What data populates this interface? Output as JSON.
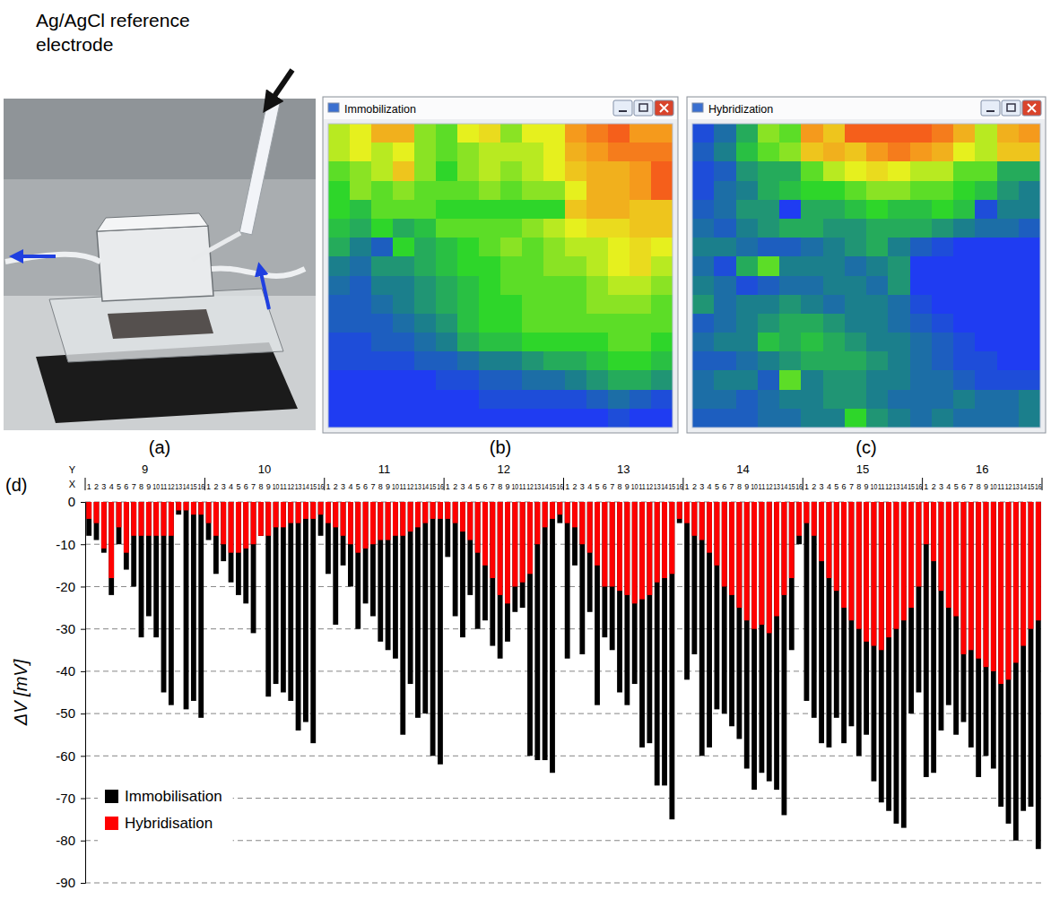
{
  "photo": {
    "panel": "(a)",
    "annotation": [
      "Ag/AgCl reference",
      "electrode"
    ]
  },
  "chart_data": [
    {
      "type": "heatmap",
      "title": "Immobilization",
      "panel": "(b)",
      "zlim": [
        -85,
        -5
      ],
      "cells": [
        [
          -49,
          -53,
          -65,
          -65,
          -45,
          -41,
          -53,
          -57,
          -45,
          -53,
          -53,
          -69,
          -73,
          -77,
          -69,
          -69
        ],
        [
          -49,
          -53,
          -49,
          -53,
          -45,
          -41,
          -45,
          -49,
          -49,
          -49,
          -53,
          -65,
          -69,
          -73,
          -73,
          -73
        ],
        [
          -41,
          -45,
          -49,
          -61,
          -45,
          -37,
          -45,
          -49,
          -45,
          -49,
          -53,
          -61,
          -65,
          -65,
          -69,
          -77
        ],
        [
          -37,
          -45,
          -41,
          -45,
          -41,
          -41,
          -41,
          -45,
          -41,
          -45,
          -45,
          -53,
          -65,
          -65,
          -69,
          -77
        ],
        [
          -37,
          -33,
          -41,
          -41,
          -41,
          -37,
          -37,
          -37,
          -37,
          -37,
          -37,
          -61,
          -65,
          -65,
          -61,
          -61
        ],
        [
          -33,
          -29,
          -37,
          -29,
          -33,
          -41,
          -41,
          -41,
          -41,
          -45,
          -49,
          -53,
          -57,
          -57,
          -61,
          -61
        ],
        [
          -29,
          -21,
          -13,
          -37,
          -29,
          -33,
          -37,
          -41,
          -45,
          -41,
          -45,
          -49,
          -49,
          -53,
          -57,
          -53
        ],
        [
          -21,
          -17,
          -25,
          -25,
          -29,
          -33,
          -37,
          -37,
          -41,
          -41,
          -45,
          -45,
          -49,
          -53,
          -57,
          -49
        ],
        [
          -17,
          -13,
          -21,
          -21,
          -25,
          -29,
          -33,
          -37,
          -41,
          -41,
          -41,
          -41,
          -45,
          -49,
          -49,
          -45
        ],
        [
          -13,
          -13,
          -17,
          -21,
          -25,
          -29,
          -33,
          -37,
          -37,
          -41,
          -41,
          -41,
          -45,
          -45,
          -45,
          -41
        ],
        [
          -13,
          -13,
          -13,
          -17,
          -21,
          -25,
          -33,
          -37,
          -37,
          -41,
          -41,
          -41,
          -41,
          -41,
          -41,
          -41
        ],
        [
          -9,
          -9,
          -13,
          -13,
          -17,
          -21,
          -29,
          -33,
          -33,
          -37,
          -37,
          -37,
          -37,
          -41,
          -41,
          -37
        ],
        [
          -9,
          -9,
          -9,
          -9,
          -13,
          -13,
          -17,
          -21,
          -21,
          -25,
          -29,
          -29,
          -33,
          -37,
          -37,
          -33
        ],
        [
          -5,
          -5,
          -5,
          -5,
          -5,
          -9,
          -9,
          -13,
          -13,
          -17,
          -17,
          -21,
          -25,
          -29,
          -29,
          -25
        ],
        [
          -5,
          -5,
          -5,
          -5,
          -5,
          -5,
          -5,
          -9,
          -9,
          -9,
          -9,
          -9,
          -13,
          -17,
          -13,
          -9
        ],
        [
          -5,
          -5,
          -5,
          -5,
          -5,
          -5,
          -5,
          -5,
          -5,
          -5,
          -5,
          -5,
          -5,
          -9,
          -5,
          -5
        ]
      ]
    },
    {
      "type": "heatmap",
      "title": "Hybridization",
      "panel": "(c)",
      "zlim": [
        -43,
        -3
      ],
      "cells": [
        [
          -5,
          -9,
          -15,
          -23,
          -21,
          -35,
          -31,
          -39,
          -39,
          -39,
          -39,
          -37,
          -33,
          -25,
          -33,
          -35
        ],
        [
          -7,
          -11,
          -17,
          -21,
          -23,
          -31,
          -33,
          -31,
          -35,
          -37,
          -35,
          -33,
          -27,
          -25,
          -31,
          -31
        ],
        [
          -5,
          -7,
          -13,
          -15,
          -15,
          -21,
          -25,
          -27,
          -29,
          -27,
          -25,
          -25,
          -21,
          -21,
          -15,
          -15
        ],
        [
          -5,
          -9,
          -11,
          -15,
          -17,
          -19,
          -19,
          -21,
          -23,
          -23,
          -21,
          -21,
          -19,
          -17,
          -13,
          -11
        ],
        [
          -7,
          -9,
          -13,
          -13,
          -3,
          -15,
          -15,
          -17,
          -19,
          -17,
          -17,
          -19,
          -17,
          -5,
          -11,
          -11
        ],
        [
          -9,
          -7,
          -11,
          -13,
          -15,
          -15,
          -13,
          -13,
          -15,
          -15,
          -15,
          -13,
          -11,
          -9,
          -9,
          -7
        ],
        [
          -11,
          -11,
          -9,
          -7,
          -7,
          -9,
          -11,
          -13,
          -15,
          -11,
          -7,
          -5,
          -3,
          -3,
          -3,
          -3
        ],
        [
          -9,
          -5,
          -15,
          -21,
          -11,
          -11,
          -11,
          -9,
          -11,
          -13,
          -3,
          -3,
          -3,
          -3,
          -3,
          -3
        ],
        [
          -11,
          -9,
          -5,
          -7,
          -9,
          -9,
          -11,
          -11,
          -9,
          -13,
          -3,
          -3,
          -3,
          -3,
          -3,
          -3
        ],
        [
          -13,
          -9,
          -11,
          -11,
          -13,
          -11,
          -9,
          -11,
          -11,
          -9,
          -5,
          -3,
          -3,
          -3,
          -3,
          -3
        ],
        [
          -7,
          -9,
          -11,
          -13,
          -15,
          -15,
          -13,
          -11,
          -11,
          -9,
          -7,
          -5,
          -3,
          -3,
          -3,
          -3
        ],
        [
          -9,
          -11,
          -11,
          -17,
          -15,
          -17,
          -15,
          -13,
          -11,
          -11,
          -9,
          -7,
          -5,
          -3,
          -3,
          -3
        ],
        [
          -7,
          -7,
          -9,
          -11,
          -13,
          -15,
          -15,
          -15,
          -13,
          -11,
          -9,
          -7,
          -5,
          -5,
          -3,
          -3
        ],
        [
          -9,
          -11,
          -11,
          -7,
          -21,
          -11,
          -13,
          -13,
          -11,
          -11,
          -9,
          -9,
          -7,
          -5,
          -5,
          -5
        ],
        [
          -9,
          -9,
          -7,
          -9,
          -11,
          -11,
          -13,
          -13,
          -11,
          -9,
          -9,
          -9,
          -11,
          -9,
          -9,
          -11
        ],
        [
          -7,
          -7,
          -7,
          -9,
          -9,
          -11,
          -11,
          -19,
          -13,
          -11,
          -9,
          -11,
          -9,
          -9,
          -9,
          -11
        ]
      ]
    },
    {
      "type": "bar",
      "panel": "(d)",
      "y_label": "ΔV [mV]",
      "group_label": "Y",
      "category_label": "X",
      "groups": [
        9,
        10,
        11,
        12,
        13,
        14,
        15,
        16
      ],
      "categories": [
        1,
        2,
        3,
        4,
        5,
        6,
        7,
        8,
        9,
        10,
        11,
        12,
        13,
        14,
        15,
        16,
        1,
        2,
        3,
        4,
        5,
        6,
        7,
        8,
        9,
        10,
        11,
        12,
        13,
        14,
        15,
        16,
        1,
        2,
        3,
        4,
        5,
        6,
        7,
        8,
        9,
        10,
        11,
        12,
        13,
        14,
        15,
        16,
        1,
        2,
        3,
        4,
        5,
        6,
        7,
        8,
        9,
        10,
        11,
        12,
        13,
        14,
        15,
        16,
        1,
        2,
        3,
        4,
        5,
        6,
        7,
        8,
        9,
        10,
        11,
        12,
        13,
        14,
        15,
        16,
        1,
        2,
        3,
        4,
        5,
        6,
        7,
        8,
        9,
        10,
        11,
        12,
        13,
        14,
        15,
        16,
        1,
        2,
        3,
        4,
        5,
        6,
        7,
        8,
        9,
        10,
        11,
        12,
        13,
        14,
        15,
        16,
        1,
        2,
        3,
        4,
        5,
        6,
        7,
        8,
        9,
        10,
        11,
        12,
        13,
        14,
        15,
        16
      ],
      "series": [
        {
          "name": "Immobilisation",
          "color": "#000000",
          "values": [
            -8,
            -9,
            -12,
            -22,
            -10,
            -16,
            -20,
            -32,
            -27,
            -32,
            -45,
            -48,
            -3,
            -49,
            -47,
            -51,
            -9,
            -17,
            -14,
            -19,
            -22,
            -24,
            -31,
            -8,
            -46,
            -43,
            -45,
            -47,
            -54,
            -52,
            -57,
            -8,
            -17,
            -29,
            -15,
            -20,
            -30,
            -24,
            -27,
            -33,
            -35,
            -37,
            -55,
            -43,
            -51,
            -50,
            -60,
            -62,
            -13,
            -27,
            -32,
            -22,
            -30,
            -28,
            -34,
            -37,
            -33,
            -26,
            -25,
            -60,
            -61,
            -61,
            -64,
            -5,
            -37,
            -15,
            -36,
            -26,
            -48,
            -32,
            -35,
            -45,
            -48,
            -43,
            -58,
            -57,
            -67,
            -67,
            -75,
            -5,
            -42,
            -36,
            -60,
            -58,
            -49,
            -50,
            -53,
            -56,
            -63,
            -68,
            -64,
            -66,
            -68,
            -74,
            -35,
            -10,
            -47,
            -51,
            -57,
            -58,
            -51,
            -57,
            -53,
            -60,
            -55,
            -66,
            -71,
            -73,
            -76,
            -77,
            -50,
            -45,
            -65,
            -64,
            -54,
            -48,
            -55,
            -52,
            -58,
            -65,
            -60,
            -63,
            -72,
            -76,
            -80,
            -73,
            -72,
            -82
          ]
        },
        {
          "name": "Hybridisation",
          "color": "#ff0000",
          "values": [
            -4,
            -5,
            -11,
            -18,
            -6,
            -12,
            -8,
            -8,
            -8,
            -8,
            -8,
            -8,
            -2,
            -2,
            -3,
            -3,
            -5,
            -8,
            -10,
            -12,
            -12,
            -11,
            -10,
            -8,
            -8,
            -6,
            -6,
            -5,
            -5,
            -4,
            -4,
            -3,
            -5,
            -6,
            -8,
            -10,
            -12,
            -11,
            -10,
            -9,
            -9,
            -8,
            -8,
            -7,
            -6,
            -5,
            -4,
            -4,
            -4,
            -5,
            -7,
            -9,
            -12,
            -15,
            -18,
            -22,
            -24,
            -20,
            -19,
            -17,
            -10,
            -6,
            -4,
            -3,
            -5,
            -6,
            -10,
            -12,
            -15,
            -20,
            -20,
            -21,
            -22,
            -24,
            -23,
            -22,
            -19,
            -18,
            -17,
            -4,
            -5,
            -8,
            -9,
            -12,
            -15,
            -20,
            -22,
            -25,
            -28,
            -30,
            -29,
            -31,
            -27,
            -22,
            -18,
            -8,
            -5,
            -8,
            -14,
            -18,
            -21,
            -25,
            -28,
            -30,
            -33,
            -34,
            -35,
            -32,
            -30,
            -28,
            -25,
            -20,
            -10,
            -14,
            -21,
            -25,
            -27,
            -36,
            -35,
            -37,
            -39,
            -40,
            -43,
            -42,
            -38,
            -34,
            -30,
            -28
          ]
        }
      ],
      "ylim": [
        -90,
        0
      ],
      "yticks": [
        0,
        -10,
        -20,
        -30,
        -40,
        -50,
        -60,
        -70,
        -80,
        -90
      ],
      "grid": true,
      "legend": "lower left"
    }
  ]
}
